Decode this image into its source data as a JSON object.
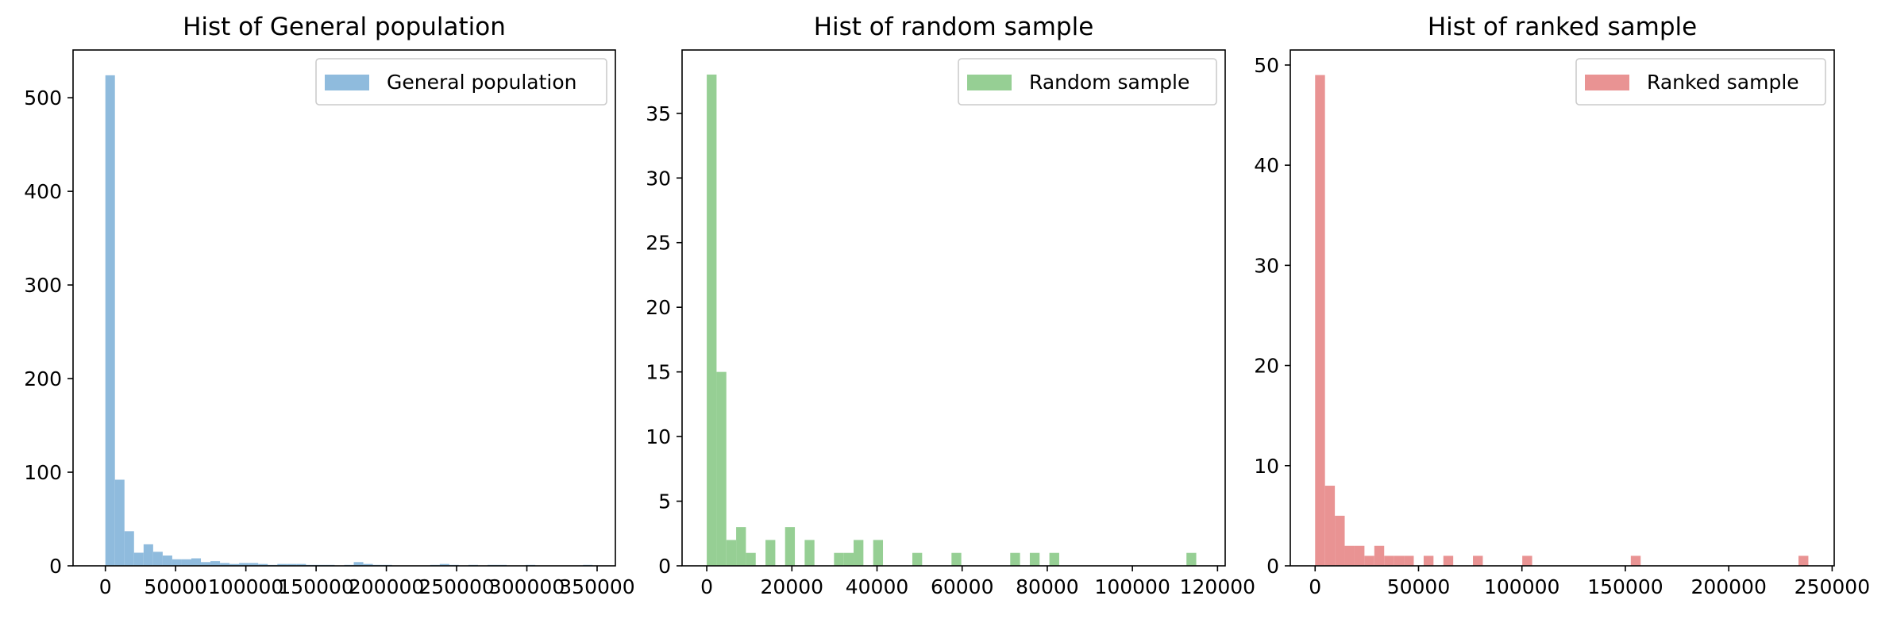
{
  "chart_data": [
    {
      "type": "bar",
      "title": "Hist of General population",
      "xlabel": "",
      "ylabel": "",
      "color": "#8fbbdd",
      "legend": {
        "label": "General population",
        "placement": "top-right"
      },
      "xlim": [
        -23000,
        363000
      ],
      "ylim": [
        0,
        551
      ],
      "xticks": [
        0,
        50000,
        100000,
        150000,
        200000,
        250000,
        300000,
        350000
      ],
      "yticks": [
        0,
        100,
        200,
        300,
        400,
        500
      ],
      "bin_width": 6800,
      "bins": [
        {
          "x": 0,
          "count": 524
        },
        {
          "x": 6800,
          "count": 92
        },
        {
          "x": 13600,
          "count": 37
        },
        {
          "x": 20400,
          "count": 14
        },
        {
          "x": 27200,
          "count": 23
        },
        {
          "x": 34000,
          "count": 15
        },
        {
          "x": 40800,
          "count": 11
        },
        {
          "x": 47600,
          "count": 7
        },
        {
          "x": 54400,
          "count": 7
        },
        {
          "x": 61200,
          "count": 8
        },
        {
          "x": 68000,
          "count": 4
        },
        {
          "x": 74800,
          "count": 5
        },
        {
          "x": 81600,
          "count": 3
        },
        {
          "x": 88400,
          "count": 2
        },
        {
          "x": 95200,
          "count": 3
        },
        {
          "x": 102000,
          "count": 3
        },
        {
          "x": 108800,
          "count": 2
        },
        {
          "x": 115600,
          "count": 1
        },
        {
          "x": 122400,
          "count": 2
        },
        {
          "x": 129200,
          "count": 2
        },
        {
          "x": 136000,
          "count": 2
        },
        {
          "x": 142800,
          "count": 1
        },
        {
          "x": 149600,
          "count": 1
        },
        {
          "x": 156400,
          "count": 1
        },
        {
          "x": 170000,
          "count": 1
        },
        {
          "x": 176800,
          "count": 4
        },
        {
          "x": 183600,
          "count": 2
        },
        {
          "x": 190400,
          "count": 1
        },
        {
          "x": 197200,
          "count": 1
        },
        {
          "x": 231200,
          "count": 1
        },
        {
          "x": 238000,
          "count": 2
        },
        {
          "x": 244800,
          "count": 1
        },
        {
          "x": 258400,
          "count": 1
        },
        {
          "x": 272000,
          "count": 1
        },
        {
          "x": 278800,
          "count": 1
        },
        {
          "x": 299200,
          "count": 1
        },
        {
          "x": 340000,
          "count": 1
        }
      ]
    },
    {
      "type": "bar",
      "title": "Hist of random sample",
      "xlabel": "",
      "ylabel": "",
      "color": "#96cf94",
      "legend": {
        "label": "Random sample",
        "placement": "top-right"
      },
      "xlim": [
        -5800,
        121800
      ],
      "ylim": [
        0,
        39.9
      ],
      "xticks": [
        0,
        20000,
        40000,
        60000,
        80000,
        100000,
        120000
      ],
      "yticks": [
        0,
        5,
        10,
        15,
        20,
        25,
        30,
        35
      ],
      "bin_width": 2300,
      "bins": [
        {
          "x": 0,
          "count": 38
        },
        {
          "x": 2300,
          "count": 15
        },
        {
          "x": 4600,
          "count": 2
        },
        {
          "x": 6900,
          "count": 3
        },
        {
          "x": 9200,
          "count": 1
        },
        {
          "x": 13800,
          "count": 2
        },
        {
          "x": 18400,
          "count": 3
        },
        {
          "x": 23000,
          "count": 2
        },
        {
          "x": 29900,
          "count": 1
        },
        {
          "x": 32200,
          "count": 1
        },
        {
          "x": 34500,
          "count": 2
        },
        {
          "x": 39100,
          "count": 2
        },
        {
          "x": 48300,
          "count": 1
        },
        {
          "x": 57500,
          "count": 1
        },
        {
          "x": 71300,
          "count": 1
        },
        {
          "x": 75900,
          "count": 1
        },
        {
          "x": 80500,
          "count": 1
        },
        {
          "x": 112700,
          "count": 1
        }
      ]
    },
    {
      "type": "bar",
      "title": "Hist of ranked sample",
      "xlabel": "",
      "ylabel": "",
      "color": "#e99393",
      "legend": {
        "label": "Ranked sample",
        "placement": "top-right"
      },
      "xlim": [
        -12000,
        251000
      ],
      "ylim": [
        0,
        51.5
      ],
      "xticks": [
        0,
        50000,
        100000,
        150000,
        200000,
        250000
      ],
      "yticks": [
        0,
        10,
        20,
        30,
        40,
        50
      ],
      "bin_width": 4770,
      "bins": [
        {
          "x": 0,
          "count": 49
        },
        {
          "x": 4770,
          "count": 8
        },
        {
          "x": 9540,
          "count": 5
        },
        {
          "x": 14310,
          "count": 2
        },
        {
          "x": 19080,
          "count": 2
        },
        {
          "x": 23850,
          "count": 1
        },
        {
          "x": 28620,
          "count": 2
        },
        {
          "x": 33390,
          "count": 1
        },
        {
          "x": 38160,
          "count": 1
        },
        {
          "x": 42930,
          "count": 1
        },
        {
          "x": 52470,
          "count": 1
        },
        {
          "x": 62010,
          "count": 1
        },
        {
          "x": 76320,
          "count": 1
        },
        {
          "x": 100170,
          "count": 1
        },
        {
          "x": 152640,
          "count": 1
        },
        {
          "x": 233730,
          "count": 1
        }
      ]
    }
  ]
}
